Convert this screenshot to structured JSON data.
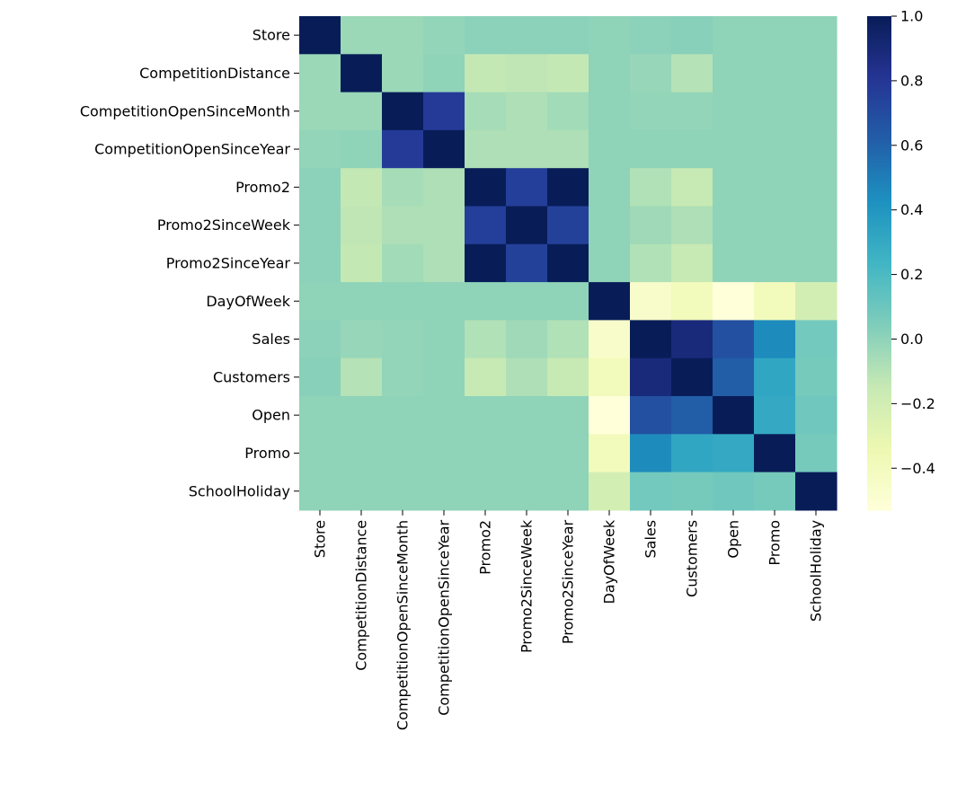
{
  "chart_data": {
    "type": "heatmap",
    "title": "",
    "xlabel": "",
    "ylabel": "",
    "x_labels": [
      "Store",
      "CompetitionDistance",
      "CompetitionOpenSinceMonth",
      "CompetitionOpenSinceYear",
      "Promo2",
      "Promo2SinceWeek",
      "Promo2SinceYear",
      "DayOfWeek",
      "Sales",
      "Customers",
      "Open",
      "Promo",
      "SchoolHoliday"
    ],
    "y_labels": [
      "Store",
      "CompetitionDistance",
      "CompetitionOpenSinceMonth",
      "CompetitionOpenSinceYear",
      "Promo2",
      "Promo2SinceWeek",
      "Promo2SinceYear",
      "DayOfWeek",
      "Sales",
      "Customers",
      "Open",
      "Promo",
      "SchoolHoliday"
    ],
    "matrix": [
      [
        1.0,
        -0.03,
        -0.03,
        -0.01,
        0.01,
        0.01,
        0.01,
        0.0,
        0.01,
        0.02,
        0.0,
        0.0,
        0.0
      ],
      [
        -0.03,
        1.0,
        -0.03,
        0.0,
        -0.14,
        -0.13,
        -0.14,
        0.0,
        -0.02,
        -0.1,
        0.0,
        0.0,
        0.0
      ],
      [
        -0.03,
        -0.03,
        1.0,
        0.78,
        -0.06,
        -0.08,
        -0.05,
        0.0,
        -0.01,
        -0.01,
        0.0,
        0.0,
        0.0
      ],
      [
        -0.01,
        0.0,
        0.78,
        1.0,
        -0.08,
        -0.08,
        -0.08,
        0.0,
        0.0,
        0.0,
        0.0,
        0.0,
        0.0
      ],
      [
        0.01,
        -0.14,
        -0.06,
        -0.08,
        1.0,
        0.76,
        1.0,
        0.0,
        -0.09,
        -0.15,
        0.0,
        0.0,
        0.0
      ],
      [
        0.01,
        -0.13,
        -0.08,
        -0.08,
        0.76,
        1.0,
        0.75,
        0.0,
        -0.04,
        -0.08,
        0.0,
        0.0,
        0.0
      ],
      [
        0.01,
        -0.14,
        -0.05,
        -0.08,
        1.0,
        0.75,
        1.0,
        0.0,
        -0.09,
        -0.15,
        0.0,
        0.0,
        0.0
      ],
      [
        0.0,
        0.0,
        0.0,
        0.0,
        0.0,
        0.0,
        0.0,
        1.0,
        -0.46,
        -0.39,
        -0.53,
        -0.39,
        -0.21
      ],
      [
        0.01,
        -0.02,
        -0.01,
        0.0,
        -0.09,
        -0.04,
        -0.09,
        -0.46,
        1.0,
        0.89,
        0.68,
        0.45,
        0.08
      ],
      [
        0.02,
        -0.1,
        -0.01,
        0.0,
        -0.15,
        -0.08,
        -0.15,
        -0.39,
        0.89,
        1.0,
        0.62,
        0.32,
        0.07
      ],
      [
        0.0,
        0.0,
        0.0,
        0.0,
        0.0,
        0.0,
        0.0,
        -0.53,
        0.68,
        0.62,
        1.0,
        0.3,
        0.09
      ],
      [
        0.0,
        0.0,
        0.0,
        0.0,
        0.0,
        0.0,
        0.0,
        -0.39,
        0.45,
        0.32,
        0.3,
        1.0,
        0.07
      ],
      [
        0.0,
        0.0,
        0.0,
        0.0,
        0.0,
        0.0,
        0.0,
        -0.21,
        0.08,
        0.07,
        0.09,
        0.07,
        1.0
      ]
    ],
    "colorbar": {
      "colormap": "YlGnBu",
      "vmin": -0.53,
      "vmax": 1.0,
      "ticks": [
        1.0,
        0.8,
        0.6,
        0.4,
        0.2,
        0.0,
        -0.2,
        -0.4
      ],
      "tick_labels": [
        "1.0",
        "0.8",
        "0.6",
        "0.4",
        "0.2",
        "0.0",
        "−0.2",
        "−0.4"
      ]
    },
    "grid": false
  }
}
